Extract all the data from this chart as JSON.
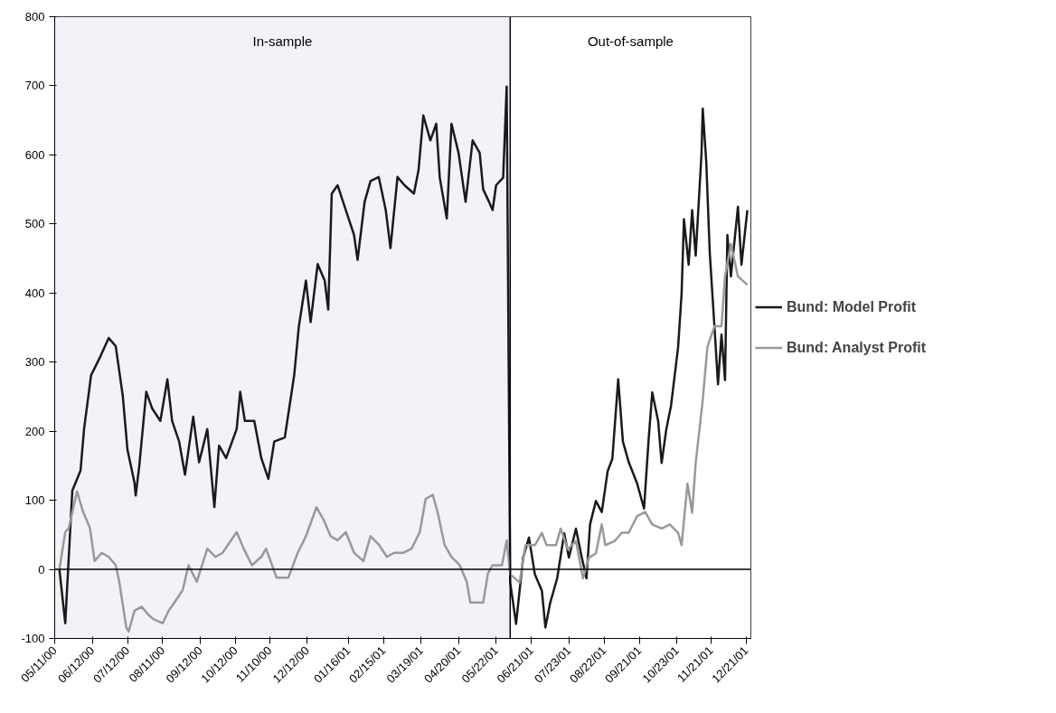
{
  "chart_data": {
    "type": "line",
    "xlim": [
      "2000-05-11",
      "2001-12-25"
    ],
    "xticks": [
      {
        "value": "2000-05-11",
        "label": "05/11/00"
      },
      {
        "value": "2000-06-12",
        "label": "06/12/00"
      },
      {
        "value": "2000-07-12",
        "label": "07/12/00"
      },
      {
        "value": "2000-08-11",
        "label": "08/11/00"
      },
      {
        "value": "2000-09-12",
        "label": "09/12/00"
      },
      {
        "value": "2000-10-12",
        "label": "10/12/00"
      },
      {
        "value": "2000-11-10",
        "label": "11/10/00"
      },
      {
        "value": "2000-12-12",
        "label": "12/12/00"
      },
      {
        "value": "2001-01-16",
        "label": "01/16/01"
      },
      {
        "value": "2001-02-15",
        "label": "02/15/01"
      },
      {
        "value": "2001-03-19",
        "label": "03/19/01"
      },
      {
        "value": "2001-04-20",
        "label": "04/20/01"
      },
      {
        "value": "2001-05-22",
        "label": "05/22/01"
      },
      {
        "value": "2001-06-21",
        "label": "06/21/01"
      },
      {
        "value": "2001-07-23",
        "label": "07/23/01"
      },
      {
        "value": "2001-08-22",
        "label": "08/22/01"
      },
      {
        "value": "2001-09-21",
        "label": "09/21/01"
      },
      {
        "value": "2001-10-23",
        "label": "10/23/01"
      },
      {
        "value": "2001-11-21",
        "label": "11/21/01"
      },
      {
        "value": "2001-12-21",
        "label": "12/21/01"
      }
    ],
    "ylim": [
      -100,
      800
    ],
    "yticks": [
      -100,
      0,
      100,
      200,
      300,
      400,
      500,
      600,
      700,
      800
    ],
    "grid": false,
    "legend": "right",
    "line_style": "solid",
    "series": [
      {
        "name": "Bund: Model Profit",
        "color": "#1a1a1a",
        "x": [
          "2000-05-15",
          "2000-05-20",
          "2000-05-26",
          "2000-06-02",
          "2000-06-05",
          "2000-06-11",
          "2000-06-18",
          "2000-06-26",
          "2000-07-02",
          "2000-07-08",
          "2000-07-12",
          "2000-07-18",
          "2000-07-19",
          "2000-07-22",
          "2000-07-28",
          "2000-08-02",
          "2000-08-09",
          "2000-08-15",
          "2000-08-19",
          "2000-08-25",
          "2000-08-30",
          "2000-09-06",
          "2000-09-11",
          "2000-09-18",
          "2000-09-24",
          "2000-09-28",
          "2000-10-04",
          "2000-10-13",
          "2000-10-16",
          "2000-10-20",
          "2000-10-28",
          "2000-11-03",
          "2000-11-09",
          "2000-11-14",
          "2000-11-23",
          "2000-12-01",
          "2000-12-05",
          "2000-12-11",
          "2000-12-15",
          "2000-12-21",
          "2000-12-27",
          "2000-12-30",
          "2001-01-02",
          "2001-01-07",
          "2001-01-14",
          "2001-01-21",
          "2001-01-24",
          "2001-01-30",
          "2001-02-04",
          "2001-02-11",
          "2001-02-17",
          "2001-02-21",
          "2001-02-27",
          "2001-03-05",
          "2001-03-13",
          "2001-03-17",
          "2001-03-21",
          "2001-03-27",
          "2001-04-01",
          "2001-04-04",
          "2001-04-10",
          "2001-04-14",
          "2001-04-20",
          "2001-04-26",
          "2001-05-02",
          "2001-05-08",
          "2001-05-11",
          "2001-05-16",
          "2001-05-19",
          "2001-05-22",
          "2001-05-28",
          "2001-05-31",
          "2001-06-03",
          "2001-06-08",
          "2001-06-14",
          "2001-06-19",
          "2001-06-24",
          "2001-06-30",
          "2001-07-03",
          "2001-07-07",
          "2001-07-13",
          "2001-07-19",
          "2001-07-23",
          "2001-07-29",
          "2001-08-03",
          "2001-08-07",
          "2001-08-10",
          "2001-08-15",
          "2001-08-20",
          "2001-08-25",
          "2001-08-29",
          "2001-09-03",
          "2001-09-07",
          "2001-09-12",
          "2001-09-19",
          "2001-09-25",
          "2001-09-29",
          "2001-10-02",
          "2001-10-07",
          "2001-10-10",
          "2001-10-14",
          "2001-10-18",
          "2001-10-24",
          "2001-10-27",
          "2001-10-29",
          "2001-11-02",
          "2001-11-05",
          "2001-11-08",
          "2001-11-13",
          "2001-11-14",
          "2001-11-17",
          "2001-11-20",
          "2001-11-24",
          "2001-11-27",
          "2001-11-30",
          "2001-12-03",
          "2001-12-05",
          "2001-12-08",
          "2001-12-14",
          "2001-12-17",
          "2001-12-22"
        ],
        "values": [
          0,
          -78,
          114,
          143,
          203,
          281,
          305,
          335,
          323,
          251,
          173,
          125,
          107,
          149,
          257,
          233,
          215,
          275,
          215,
          185,
          137,
          221,
          155,
          203,
          90,
          179,
          161,
          203,
          257,
          215,
          215,
          161,
          131,
          185,
          191,
          281,
          352,
          418,
          358,
          442,
          418,
          376,
          544,
          556,
          520,
          484,
          448,
          532,
          562,
          568,
          520,
          465,
          568,
          556,
          544,
          579,
          657,
          621,
          645,
          567,
          508,
          645,
          603,
          532,
          621,
          603,
          550,
          532,
          520,
          556,
          567,
          699,
          -19,
          -79,
          17,
          46,
          -7,
          -31,
          -84,
          -49,
          -13,
          52,
          17,
          59,
          17,
          -13,
          65,
          99,
          83,
          142,
          160,
          275,
          185,
          155,
          125,
          88,
          190,
          256,
          215,
          154,
          203,
          237,
          321,
          399,
          507,
          441,
          520,
          454,
          603,
          667,
          590,
          458,
          351,
          268,
          340,
          274,
          484,
          424,
          525,
          441,
          520
        ]
      },
      {
        "name": "Bund: Analyst Profit",
        "color": "#999999",
        "x": [
          "2000-05-15",
          "2000-05-20",
          "2000-05-23",
          "2000-05-30",
          "2000-06-04",
          "2000-06-10",
          "2000-06-14",
          "2000-06-20",
          "2000-06-26",
          "2000-07-02",
          "2000-07-05",
          "2000-07-11",
          "2000-07-13",
          "2000-07-18",
          "2000-07-24",
          "2000-07-30",
          "2000-08-03",
          "2000-08-11",
          "2000-08-16",
          "2000-08-21",
          "2000-08-28",
          "2000-09-02",
          "2000-09-09",
          "2000-09-18",
          "2000-09-25",
          "2000-10-01",
          "2000-10-13",
          "2000-10-19",
          "2000-10-26",
          "2000-11-03",
          "2000-11-07",
          "2000-11-16",
          "2000-11-26",
          "2000-12-04",
          "2000-12-11",
          "2000-12-20",
          "2000-12-26",
          "2001-01-01",
          "2001-01-07",
          "2001-01-14",
          "2001-01-21",
          "2001-01-29",
          "2001-02-04",
          "2001-02-11",
          "2001-02-18",
          "2001-02-24",
          "2001-03-04",
          "2001-03-11",
          "2001-03-18",
          "2001-03-23",
          "2001-03-29",
          "2001-04-02",
          "2001-04-08",
          "2001-04-14",
          "2001-04-21",
          "2001-04-27",
          "2001-04-30",
          "2001-05-11",
          "2001-05-15",
          "2001-05-19",
          "2001-05-27",
          "2001-05-31",
          "2001-06-03",
          "2001-06-11",
          "2001-06-16",
          "2001-06-24",
          "2001-06-30",
          "2001-07-04",
          "2001-07-12",
          "2001-07-16",
          "2001-07-22",
          "2001-07-29",
          "2001-08-04",
          "2001-08-09",
          "2001-08-15",
          "2001-08-20",
          "2001-08-23",
          "2001-08-31",
          "2001-09-06",
          "2001-09-12",
          "2001-09-19",
          "2001-09-26",
          "2001-10-02",
          "2001-10-10",
          "2001-10-17",
          "2001-10-24",
          "2001-10-27",
          "2001-11-01",
          "2001-11-05",
          "2001-11-08",
          "2001-11-14",
          "2001-11-18",
          "2001-11-24",
          "2001-11-30",
          "2001-12-03",
          "2001-12-08",
          "2001-12-14",
          "2001-12-22"
        ],
        "values": [
          0,
          54,
          60,
          113,
          84,
          60,
          12,
          24,
          18,
          6,
          -18,
          -84,
          -90,
          -60,
          -54,
          -66,
          -72,
          -78,
          -60,
          -48,
          -30,
          6,
          -18,
          30,
          18,
          24,
          54,
          30,
          6,
          18,
          30,
          -12,
          -12,
          24,
          48,
          90,
          72,
          48,
          42,
          54,
          24,
          12,
          48,
          36,
          18,
          24,
          24,
          30,
          54,
          102,
          108,
          84,
          36,
          18,
          6,
          -18,
          -48,
          -48,
          -6,
          6,
          6,
          42,
          -7,
          -19,
          35,
          35,
          53,
          35,
          35,
          59,
          29,
          41,
          -13,
          17,
          23,
          65,
          35,
          41,
          53,
          53,
          77,
          83,
          65,
          59,
          65,
          53,
          35,
          124,
          82,
          154,
          245,
          322,
          352,
          352,
          424,
          471,
          424,
          412
        ]
      }
    ],
    "ref_lines": [
      {
        "axis": "y",
        "value": 0,
        "color": "#000000"
      },
      {
        "axis": "x",
        "value": "2001-06-03",
        "color": "#000000"
      }
    ],
    "bands": [
      {
        "axis": "x",
        "from": "2000-05-11",
        "to": "2001-06-03",
        "label": "In-sample",
        "color": "#f2f2f8"
      },
      {
        "axis": "x",
        "from": "2001-06-03",
        "to": "2001-12-25",
        "label": "Out-of-sample",
        "color": "#ffffff"
      }
    ]
  }
}
